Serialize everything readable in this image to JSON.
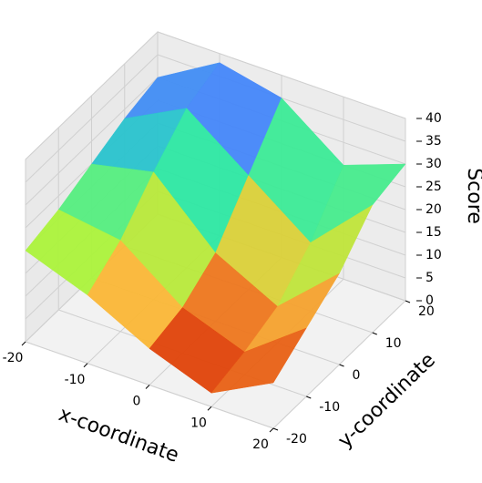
{
  "chart_data": {
    "type": "surface3d",
    "x_label": "x-coordinate",
    "y_label": "y-coordinate",
    "z_label": "Score",
    "x": [
      -20,
      -10,
      0,
      10,
      20
    ],
    "y": [
      -20,
      -10,
      0,
      10,
      20
    ],
    "z": [
      [
        20,
        15,
        8,
        3,
        10
      ],
      [
        22,
        20,
        10,
        5,
        15
      ],
      [
        25,
        28,
        15,
        8,
        20
      ],
      [
        28,
        35,
        25,
        15,
        28
      ],
      [
        30,
        38,
        35,
        25,
        30
      ]
    ],
    "xlim": [
      -20,
      20
    ],
    "ylim": [
      -20,
      20
    ],
    "zlim": [
      0,
      40
    ],
    "xticks": [
      -20,
      -10,
      0,
      10,
      20
    ],
    "yticks": [
      -20,
      -10,
      0,
      10,
      20
    ],
    "zticks": [
      0,
      5,
      10,
      15,
      20,
      25,
      30,
      35,
      40
    ],
    "colormap": [
      "#30123b",
      "#4686fb",
      "#1be5b5",
      "#a2fc3c",
      "#fbb938",
      "#e4460a",
      "#7a0403"
    ],
    "grid": true
  }
}
